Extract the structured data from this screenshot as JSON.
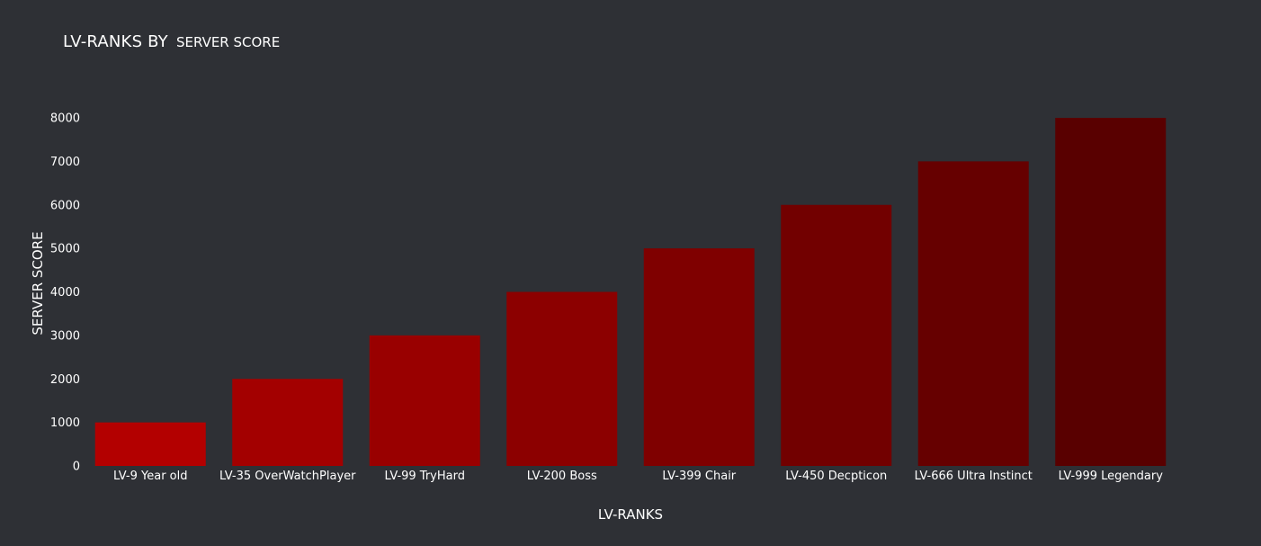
{
  "title": {
    "main": "LV-RANKS BY",
    "sub": "SERVER SCORE"
  },
  "colors": {
    "background": "#2e3035",
    "text": "#ffffff",
    "bars": [
      "#b30000",
      "#a30000",
      "#990000",
      "#8c0000",
      "#7f0000",
      "#720000",
      "#660000",
      "#590000"
    ]
  },
  "chart_data": {
    "type": "bar",
    "title": "LV-RANKS BY SERVER SCORE",
    "xlabel": "LV-RANKS",
    "ylabel": "SERVER SCORE",
    "categories": [
      "LV-9 Year old",
      "LV-35 OverWatchPlayer",
      "LV-99 TryHard",
      "LV-200 Boss",
      "LV-399 Chair",
      "LV-450 Decpticon",
      "LV-666 Ultra Instinct",
      "LV-999 Legendary"
    ],
    "values": [
      1000,
      2000,
      3000,
      4000,
      5000,
      6000,
      7000,
      8000
    ],
    "ylim": [
      0,
      8000
    ],
    "yticks": [
      0,
      1000,
      2000,
      3000,
      4000,
      5000,
      6000,
      7000,
      8000
    ],
    "grid": false,
    "legend": "none"
  }
}
